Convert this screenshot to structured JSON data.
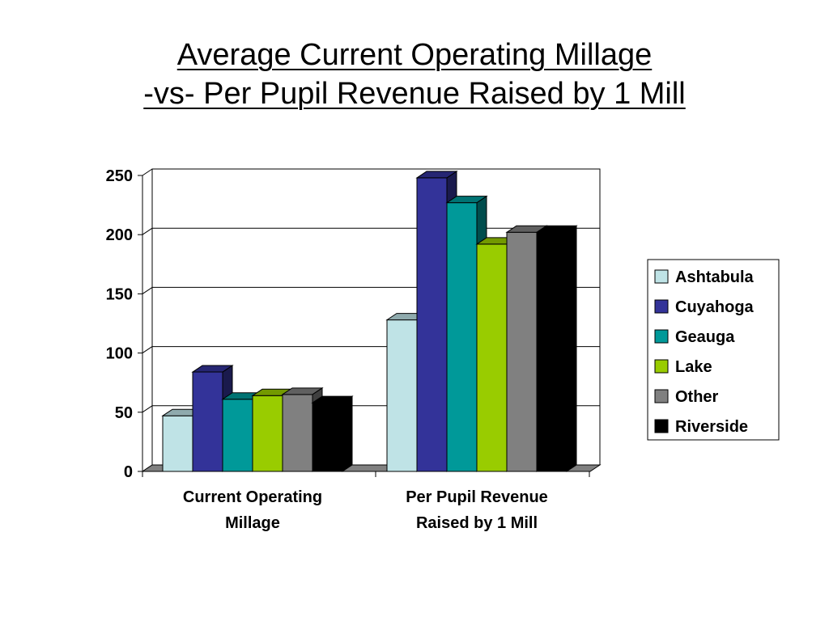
{
  "title_lines": [
    "Average Current Operating Millage",
    "-vs- Per Pupil Revenue Raised by 1 Mill"
  ],
  "chart_data": {
    "type": "bar",
    "title": "Average Current Operating Millage -vs- Per Pupil Revenue Raised by 1 Mill",
    "categories": [
      [
        "Current Operating",
        "Millage"
      ],
      [
        "Per Pupil Revenue",
        "Raised by 1 Mill"
      ]
    ],
    "series": [
      {
        "name": "Ashtabula",
        "color": "#bfe3e6",
        "values": [
          47,
          128
        ]
      },
      {
        "name": "Cuyahoga",
        "color": "#333399",
        "values": [
          84,
          248
        ]
      },
      {
        "name": "Geauga",
        "color": "#009999",
        "values": [
          61,
          227
        ]
      },
      {
        "name": "Lake",
        "color": "#99cc00",
        "values": [
          64,
          192
        ]
      },
      {
        "name": "Other",
        "color": "#808080",
        "values": [
          65,
          202
        ]
      },
      {
        "name": "Riverside",
        "color": "#000000",
        "values": [
          58,
          202
        ]
      }
    ],
    "ylim": [
      0,
      250
    ],
    "yticks": [
      0,
      50,
      100,
      150,
      200,
      250
    ],
    "grid": true,
    "legend": "right",
    "three_d": true
  }
}
